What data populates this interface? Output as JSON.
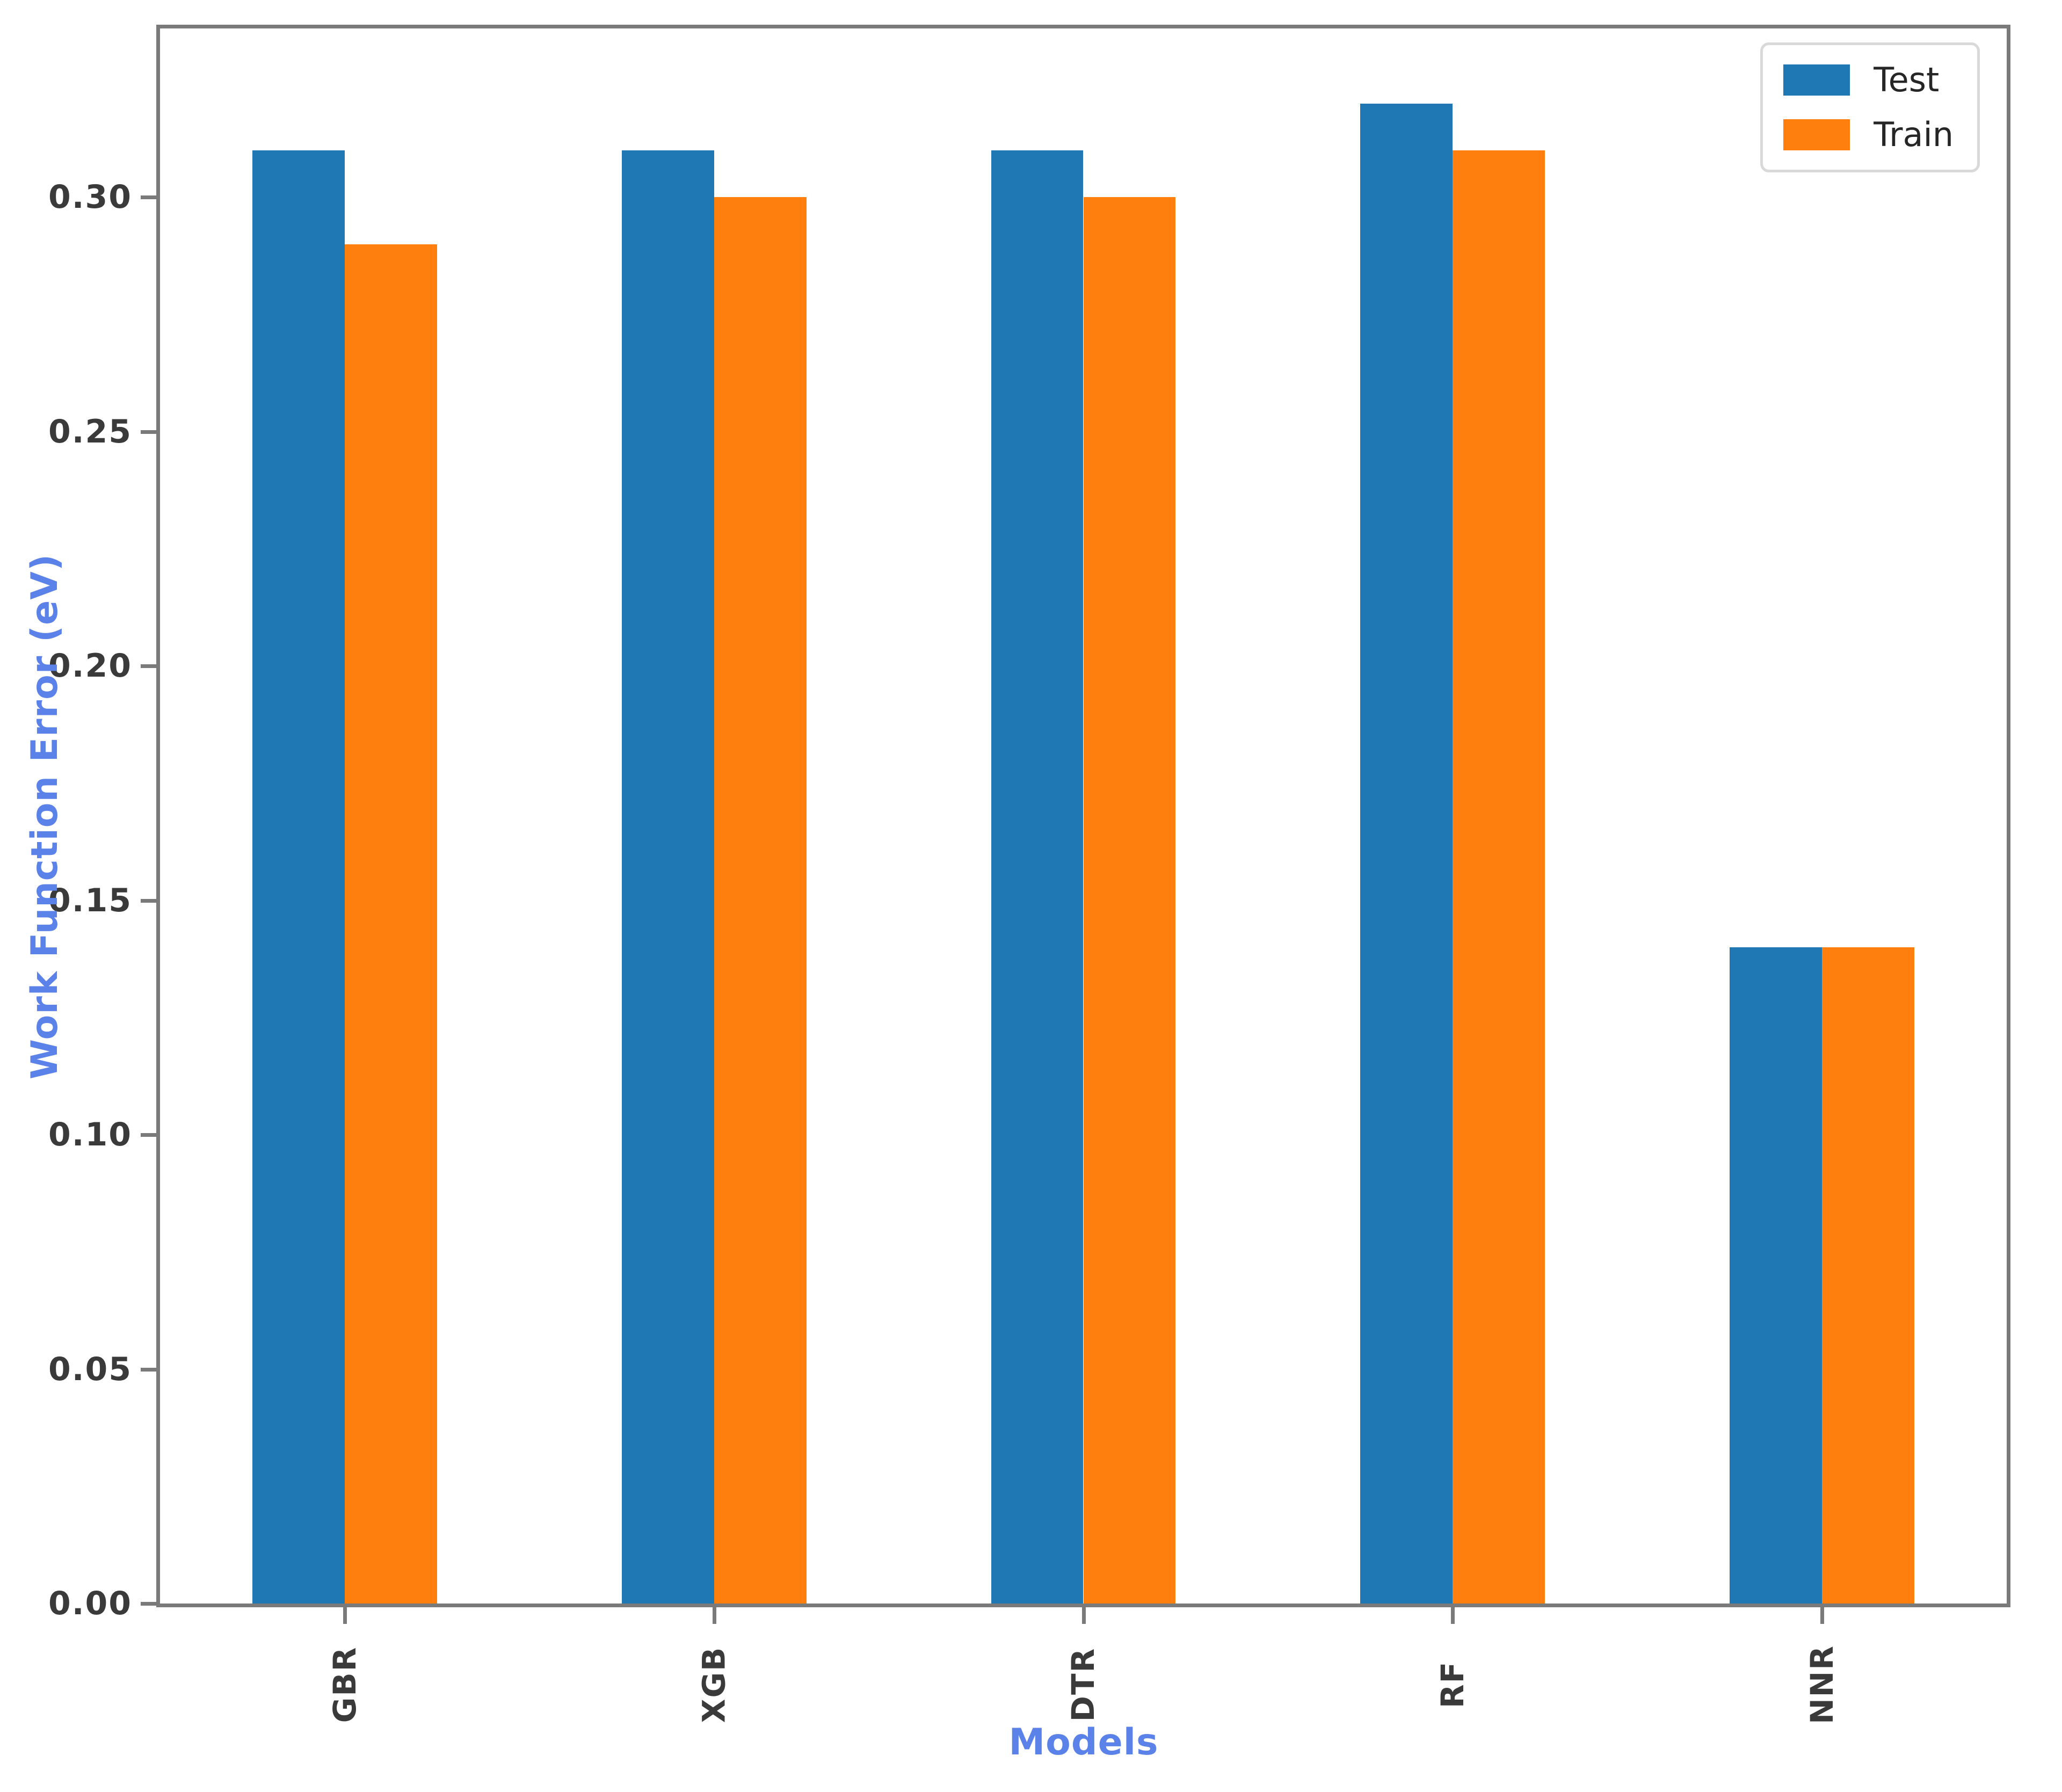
{
  "figure": {
    "background": "#ffffff"
  },
  "axes": {
    "xlabel": "Models",
    "ylabel": "Work Function Error (eV)",
    "label_color": "#5b82e8",
    "tick_text_color": "#3a3a3a",
    "spine_color": "#7a7a7a"
  },
  "legend": {
    "position": "upper right",
    "items": [
      {
        "label": "Test",
        "color": "#1f77b4"
      },
      {
        "label": "Train",
        "color": "#ff7f0e"
      }
    ]
  },
  "chart_data": {
    "type": "bar",
    "title": "",
    "xlabel": "Models",
    "ylabel": "Work Function Error (eV)",
    "categories": [
      "GBR",
      "XGB",
      "DTR",
      "RF",
      "NNR"
    ],
    "series": [
      {
        "name": "Test",
        "color": "#1f77b4",
        "values": [
          0.31,
          0.31,
          0.31,
          0.32,
          0.14
        ]
      },
      {
        "name": "Train",
        "color": "#ff7f0e",
        "values": [
          0.29,
          0.3,
          0.3,
          0.31,
          0.14
        ]
      }
    ],
    "ylim": [
      0,
      0.336
    ],
    "yticks": [
      0.0,
      0.05,
      0.1,
      0.15,
      0.2,
      0.25,
      0.3
    ],
    "grid": false,
    "legend_position": "upper right",
    "xtick_rotation": 90
  }
}
